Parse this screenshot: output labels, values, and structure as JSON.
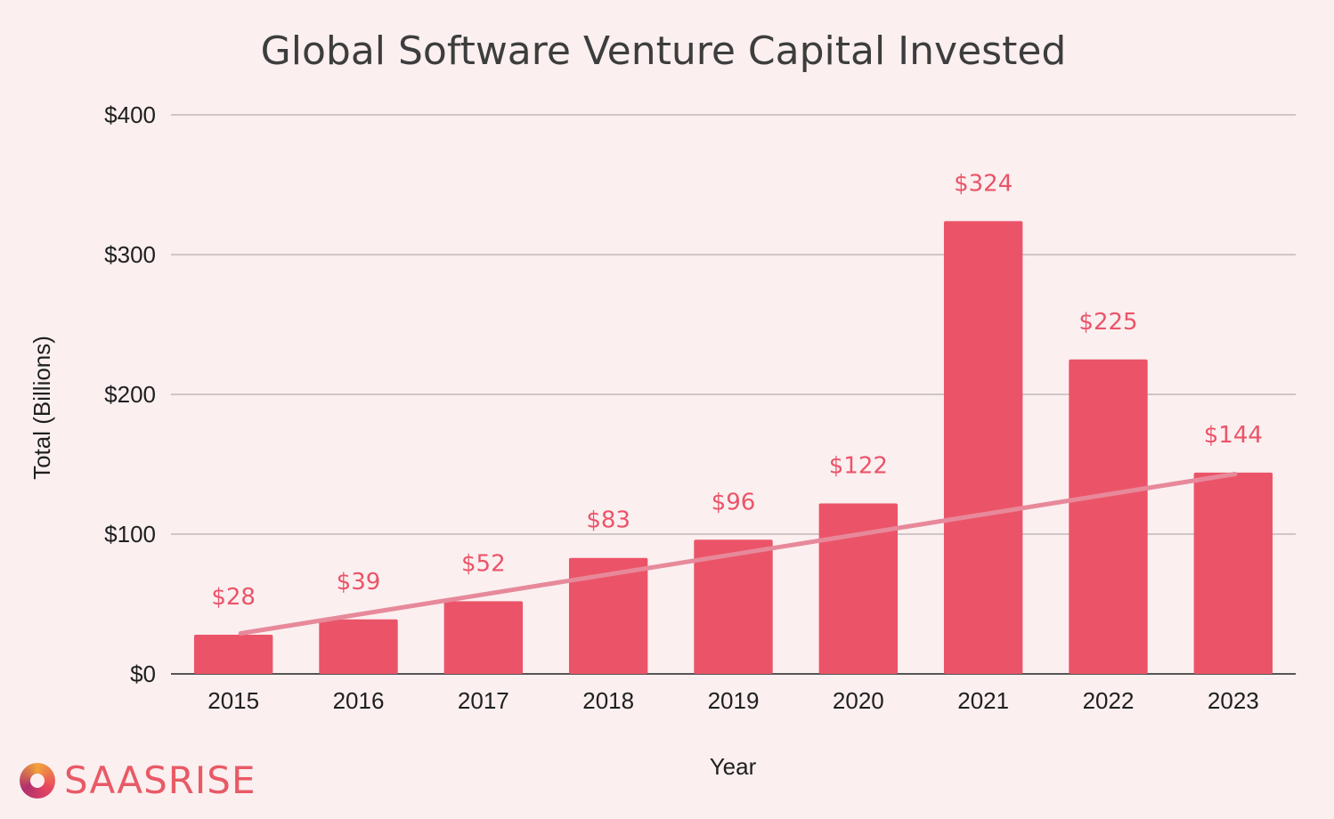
{
  "brand": {
    "name": "SAASRISE",
    "logo_icon": "saasrise-logo-icon"
  },
  "colors": {
    "bar": "#eb5468",
    "trendline": "#e7899a",
    "data_label": "#eb5468",
    "background": "#fbeff0"
  },
  "chart_data": {
    "type": "bar",
    "title": "Global Software Venture Capital Invested",
    "xlabel": "Year",
    "ylabel": "Total (Billions)",
    "categories": [
      "2015",
      "2016",
      "2017",
      "2018",
      "2019",
      "2020",
      "2021",
      "2022",
      "2023"
    ],
    "series": [
      {
        "values": [
          28,
          39,
          52,
          83,
          96,
          122,
          324,
          225,
          144
        ]
      }
    ],
    "data_labels": [
      "$28",
      "$39",
      "$52",
      "$83",
      "$96",
      "$122",
      "$324",
      "$225",
      "$144"
    ],
    "ylim": [
      0,
      400
    ],
    "yticks": [
      0,
      100,
      200,
      300,
      400
    ],
    "ytick_labels": [
      "$0",
      "$100",
      "$200",
      "$300",
      "$400"
    ],
    "trendline": {
      "type": "linear",
      "start": 29,
      "end": 143
    },
    "grid": true,
    "legend": "none"
  }
}
